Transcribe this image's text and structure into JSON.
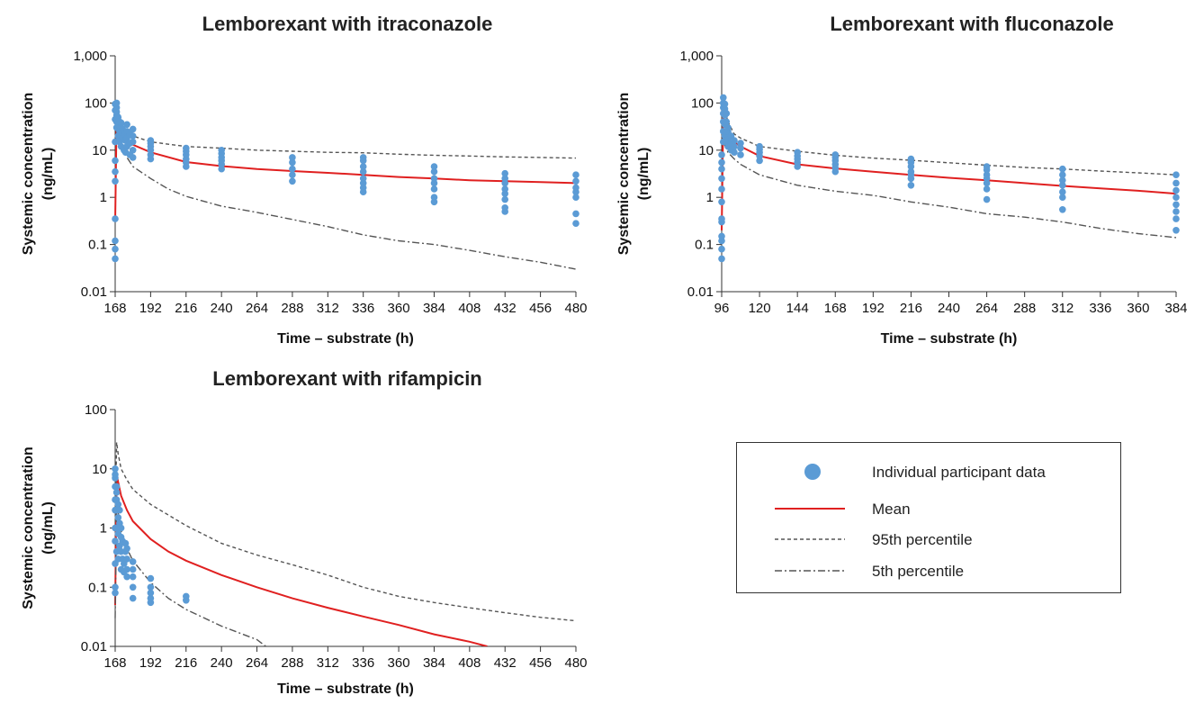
{
  "chart_data": [
    {
      "type": "line",
      "title": "Lemborexant with itraconazole",
      "xlabel": "Time – substrate (h)",
      "ylabel": "Systemic concentration (ng/mL)",
      "ylabel_lines": [
        "Systemic concentration",
        "(ng/mL)"
      ],
      "yscale": "log",
      "xlim": [
        168,
        480
      ],
      "ylim": [
        0.01,
        1000
      ],
      "x_ticks": [
        168,
        192,
        216,
        240,
        264,
        288,
        312,
        336,
        360,
        384,
        408,
        432,
        456,
        480
      ],
      "y_ticks": [
        0.01,
        0.1,
        1,
        10,
        100,
        1000
      ],
      "y_tick_labels": [
        "0.01",
        "0.1",
        "1",
        "10",
        "100",
        "1,000"
      ],
      "series": [
        {
          "name": "Mean",
          "style": "solid",
          "color": "#e02020",
          "x": [
            168,
            169,
            170,
            172,
            176,
            180,
            192,
            216,
            240,
            264,
            288,
            312,
            336,
            360,
            384,
            408,
            432,
            456,
            480
          ],
          "y": [
            0.3,
            50,
            38,
            22,
            16,
            13,
            9,
            5.6,
            4.6,
            4.0,
            3.6,
            3.3,
            3.0,
            2.7,
            2.5,
            2.3,
            2.2,
            2.1,
            2.0
          ]
        },
        {
          "name": "95th percentile",
          "style": "dashed",
          "color": "#555555",
          "x": [
            169,
            172,
            176,
            180,
            192,
            216,
            240,
            264,
            288,
            312,
            336,
            360,
            384,
            408,
            432,
            456,
            480
          ],
          "y": [
            80,
            30,
            22,
            20,
            15,
            12,
            11,
            10,
            9.5,
            9,
            8.8,
            8.2,
            7.8,
            7.5,
            7.2,
            7.0,
            6.8
          ]
        },
        {
          "name": "5th percentile",
          "style": "dashdot",
          "color": "#555555",
          "x": [
            169,
            172,
            176,
            180,
            192,
            204,
            216,
            240,
            264,
            288,
            312,
            336,
            360,
            384,
            408,
            432,
            456,
            480
          ],
          "y": [
            25,
            12,
            7,
            4.5,
            2.5,
            1.5,
            1.05,
            0.65,
            0.48,
            0.34,
            0.24,
            0.16,
            0.12,
            0.1,
            0.075,
            0.055,
            0.042,
            0.03
          ]
        },
        {
          "name": "Individual participant data",
          "style": "points",
          "color": "#5b9bd5",
          "x": [
            168,
            168,
            168,
            168,
            168,
            168,
            168,
            168,
            168,
            168,
            168,
            169,
            169,
            169,
            169,
            169,
            169,
            170,
            170,
            170,
            171,
            171,
            171,
            172,
            172,
            172,
            172,
            173,
            173,
            174,
            174,
            175,
            175,
            176,
            176,
            176,
            176,
            178,
            178,
            178,
            180,
            180,
            180,
            180,
            180,
            192,
            192,
            192,
            192,
            192,
            192,
            216,
            216,
            216,
            216,
            216,
            216,
            240,
            240,
            240,
            240,
            240,
            240,
            288,
            288,
            288,
            288,
            288,
            336,
            336,
            336,
            336,
            336,
            336,
            336,
            336,
            384,
            384,
            384,
            384,
            384,
            384,
            384,
            432,
            432,
            432,
            432,
            432,
            432,
            432,
            432,
            480,
            480,
            480,
            480,
            480,
            480,
            480
          ],
          "y": [
            0.05,
            0.08,
            0.12,
            0.35,
            2.2,
            3.5,
            6,
            15,
            45,
            70,
            95,
            30,
            40,
            55,
            65,
            80,
            100,
            20,
            35,
            50,
            15,
            25,
            40,
            12,
            20,
            30,
            38,
            18,
            28,
            10,
            22,
            9,
            16,
            12,
            18,
            25,
            35,
            8,
            14,
            22,
            7,
            10,
            15,
            20,
            28,
            6.5,
            8,
            10,
            12,
            14,
            16,
            4.5,
            5.5,
            6.5,
            8,
            9.5,
            11,
            4,
            5,
            6,
            7,
            8.5,
            10,
            2.2,
            3,
            4,
            5.5,
            7,
            1.3,
            1.6,
            2,
            2.5,
            3.5,
            4.5,
            6,
            7,
            0.8,
            1,
            1.5,
            2,
            2.5,
            3.5,
            4.5,
            0.5,
            0.6,
            0.9,
            1.2,
            1.5,
            2,
            2.5,
            3.2,
            0.28,
            0.45,
            1,
            1.3,
            1.6,
            2.2,
            3
          ]
        }
      ]
    },
    {
      "type": "line",
      "title": "Lemborexant with fluconazole",
      "xlabel": "Time – substrate (h)",
      "ylabel": "Systemic concentration (ng/mL)",
      "ylabel_lines": [
        "Systemic concentration",
        "(ng/mL)"
      ],
      "yscale": "log",
      "xlim": [
        96,
        384
      ],
      "ylim": [
        0.01,
        1000
      ],
      "x_ticks": [
        96,
        120,
        144,
        168,
        192,
        216,
        240,
        264,
        288,
        312,
        336,
        360,
        384
      ],
      "y_ticks": [
        0.01,
        0.1,
        1,
        10,
        100,
        1000
      ],
      "y_tick_labels": [
        "0.01",
        "0.1",
        "1",
        "10",
        "100",
        "1,000"
      ],
      "series": [
        {
          "name": "Mean",
          "style": "solid",
          "color": "#e02020",
          "x": [
            96,
            97,
            98,
            100,
            104,
            108,
            120,
            144,
            168,
            192,
            216,
            240,
            264,
            288,
            312,
            336,
            360,
            384
          ],
          "y": [
            0.2,
            50,
            38,
            22,
            15,
            12,
            7.5,
            5,
            4.1,
            3.5,
            3.0,
            2.6,
            2.3,
            2.0,
            1.75,
            1.55,
            1.38,
            1.2
          ]
        },
        {
          "name": "95th percentile",
          "style": "dashed",
          "color": "#555555",
          "x": [
            97,
            100,
            104,
            108,
            120,
            144,
            168,
            192,
            216,
            240,
            264,
            288,
            312,
            336,
            360,
            384
          ],
          "y": [
            100,
            40,
            22,
            18,
            12,
            9.5,
            7.8,
            6.8,
            6.1,
            5.4,
            4.8,
            4.3,
            4.0,
            3.6,
            3.3,
            3.0
          ]
        },
        {
          "name": "5th percentile",
          "style": "dashdot",
          "color": "#555555",
          "x": [
            97,
            100,
            104,
            108,
            120,
            144,
            168,
            192,
            216,
            240,
            264,
            288,
            312,
            336,
            360,
            384
          ],
          "y": [
            15,
            9,
            6.5,
            5,
            3,
            1.8,
            1.35,
            1.1,
            0.8,
            0.62,
            0.45,
            0.38,
            0.3,
            0.22,
            0.17,
            0.14
          ]
        },
        {
          "name": "Individual participant data",
          "style": "points",
          "color": "#5b9bd5",
          "x": [
            96,
            96,
            96,
            96,
            96,
            96,
            96,
            96,
            96,
            96,
            96,
            96,
            97,
            97,
            97,
            97,
            97,
            97,
            97,
            98,
            98,
            98,
            98,
            98,
            99,
            99,
            99,
            99,
            100,
            100,
            100,
            100,
            102,
            102,
            102,
            104,
            104,
            104,
            108,
            108,
            108,
            120,
            120,
            120,
            120,
            120,
            144,
            144,
            144,
            144,
            144,
            168,
            168,
            168,
            168,
            168,
            168,
            216,
            216,
            216,
            216,
            216,
            216,
            216,
            264,
            264,
            264,
            264,
            264,
            264,
            264,
            312,
            312,
            312,
            312,
            312,
            312,
            312,
            384,
            384,
            384,
            384,
            384,
            384,
            384,
            384
          ],
          "y": [
            0.05,
            0.08,
            0.12,
            0.15,
            0.3,
            0.35,
            0.8,
            1.5,
            2.5,
            4,
            5.5,
            8,
            15,
            25,
            40,
            60,
            80,
            100,
            130,
            20,
            35,
            55,
            75,
            95,
            15,
            25,
            40,
            60,
            12,
            18,
            25,
            30,
            10,
            14,
            20,
            9,
            12,
            16,
            8,
            11,
            14,
            6,
            7.5,
            9,
            10.5,
            12,
            4.5,
            5.5,
            6.5,
            7.5,
            9,
            3.5,
            4.2,
            5,
            6,
            7,
            8,
            1.8,
            2.5,
            3,
            3.5,
            4.5,
            5.5,
            6.5,
            0.9,
            1.5,
            2,
            2.5,
            3,
            3.8,
            4.5,
            0.55,
            1,
            1.3,
            1.8,
            2.3,
            3,
            4,
            0.2,
            0.35,
            0.5,
            0.7,
            1,
            1.4,
            2,
            3
          ]
        }
      ]
    },
    {
      "type": "line",
      "title": "Lemborexant with rifampicin",
      "xlabel": "Time – substrate (h)",
      "ylabel": "Systemic concentration (ng/mL)",
      "ylabel_lines": [
        "Systemic concentration",
        "(ng/mL)"
      ],
      "yscale": "log",
      "xlim": [
        168,
        480
      ],
      "ylim": [
        0.01,
        100
      ],
      "x_ticks": [
        168,
        192,
        216,
        240,
        264,
        288,
        312,
        336,
        360,
        384,
        408,
        432,
        456,
        480
      ],
      "y_ticks": [
        0.01,
        0.1,
        1,
        10,
        100
      ],
      "y_tick_labels": [
        "0.01",
        "0.1",
        "1",
        "10",
        "100"
      ],
      "series": [
        {
          "name": "Mean",
          "style": "solid",
          "color": "#e02020",
          "x": [
            168,
            169,
            170,
            172,
            176,
            180,
            192,
            204,
            216,
            240,
            264,
            288,
            312,
            336,
            360,
            384,
            408,
            420
          ],
          "y": [
            0.05,
            8,
            6,
            3.5,
            2,
            1.3,
            0.65,
            0.4,
            0.28,
            0.16,
            0.1,
            0.065,
            0.045,
            0.032,
            0.023,
            0.016,
            0.012,
            0.01
          ]
        },
        {
          "name": "95th percentile",
          "style": "dashed",
          "color": "#555555",
          "x": [
            168,
            169,
            170,
            172,
            176,
            180,
            192,
            216,
            240,
            264,
            288,
            312,
            336,
            360,
            384,
            408,
            432,
            456,
            480
          ],
          "y": [
            1,
            28,
            18,
            10,
            6.5,
            4.5,
            2.5,
            1.1,
            0.55,
            0.35,
            0.24,
            0.16,
            0.1,
            0.07,
            0.055,
            0.045,
            0.037,
            0.031,
            0.027
          ]
        },
        {
          "name": "5th percentile",
          "style": "dashdot",
          "color": "#555555",
          "x": [
            168,
            169,
            170,
            172,
            176,
            180,
            192,
            204,
            216,
            240,
            264,
            270
          ],
          "y": [
            0.03,
            3,
            1.8,
            0.9,
            0.45,
            0.28,
            0.12,
            0.065,
            0.042,
            0.022,
            0.013,
            0.01
          ]
        },
        {
          "name": "Individual participant data",
          "style": "points",
          "color": "#5b9bd5",
          "x": [
            168,
            168,
            168,
            168,
            168,
            168,
            168,
            168,
            168,
            168,
            168,
            169,
            169,
            169,
            169,
            169,
            169,
            170,
            170,
            170,
            170,
            171,
            171,
            171,
            172,
            172,
            172,
            172,
            173,
            173,
            174,
            174,
            175,
            175,
            176,
            176,
            176,
            176,
            180,
            180,
            180,
            180,
            180,
            192,
            192,
            192,
            192,
            192,
            216,
            216
          ],
          "y": [
            0.08,
            0.1,
            0.25,
            0.6,
            1,
            2,
            3,
            5,
            7,
            8,
            10,
            0.4,
            1,
            2,
            3,
            4,
            5,
            0.3,
            0.8,
            1.5,
            2.5,
            0.5,
            1.2,
            2,
            0.2,
            0.4,
            0.7,
            1,
            0.3,
            0.6,
            0.18,
            0.25,
            0.4,
            0.55,
            0.15,
            0.2,
            0.3,
            0.45,
            0.065,
            0.1,
            0.15,
            0.2,
            0.27,
            0.055,
            0.065,
            0.08,
            0.1,
            0.14,
            0.06,
            0.07
          ]
        }
      ]
    }
  ],
  "legend": {
    "items": [
      {
        "label": "Individual participant data",
        "style": "points",
        "color": "#5b9bd5"
      },
      {
        "label": "Mean",
        "style": "solid",
        "color": "#e02020"
      },
      {
        "label": "95th percentile",
        "style": "dashed",
        "color": "#555555"
      },
      {
        "label": "5th percentile",
        "style": "dashdot",
        "color": "#555555"
      }
    ]
  }
}
